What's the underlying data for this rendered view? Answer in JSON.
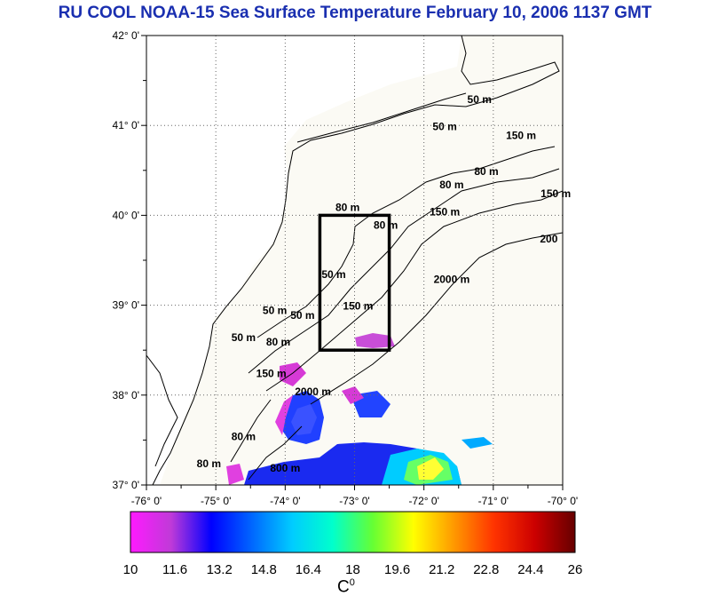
{
  "title": "RU COOL  NOAA-15 Sea Surface Temperature February 10, 2006 1137 GMT",
  "map": {
    "lat_labels": [
      "42° 0'",
      "41° 0'",
      "40° 0'",
      "39° 0'",
      "38° 0'",
      "37° 0'"
    ],
    "lat_values": [
      42,
      41,
      40,
      39,
      38,
      37
    ],
    "lon_labels": [
      "-76° 0'",
      "-75° 0'",
      "-74° 0'",
      "-73° 0'",
      "-72° 0'",
      "-71° 0'",
      "-70° 0'"
    ],
    "lon_values": [
      -76,
      -75,
      -74,
      -73,
      -72,
      -71,
      -70
    ],
    "lon_range": [
      -76,
      -70
    ],
    "lat_range": [
      37,
      42
    ],
    "grid": "dotted",
    "study_box": {
      "lon": [
        -73.5,
        -72.5
      ],
      "lat": [
        38.5,
        40.0
      ]
    },
    "contour_labels": [
      {
        "text": "50 m",
        "lon": -71.2,
        "lat": 41.25
      },
      {
        "text": "50 m",
        "lon": -71.7,
        "lat": 40.95
      },
      {
        "text": "150 m",
        "lon": -70.6,
        "lat": 40.85
      },
      {
        "text": "80 m",
        "lon": -71.6,
        "lat": 40.3
      },
      {
        "text": "80 m",
        "lon": -71.1,
        "lat": 40.45
      },
      {
        "text": "150 m",
        "lon": -70.1,
        "lat": 40.2
      },
      {
        "text": "80 m",
        "lon": -73.1,
        "lat": 40.05
      },
      {
        "text": "80 m",
        "lon": -72.55,
        "lat": 39.85
      },
      {
        "text": "150 m",
        "lon": -71.7,
        "lat": 40.0
      },
      {
        "text": "200",
        "lon": -70.2,
        "lat": 39.7
      },
      {
        "text": "50 m",
        "lon": -73.3,
        "lat": 39.3
      },
      {
        "text": "2000 m",
        "lon": -71.6,
        "lat": 39.25
      },
      {
        "text": "50 m",
        "lon": -74.15,
        "lat": 38.9
      },
      {
        "text": "50 m",
        "lon": -73.75,
        "lat": 38.85
      },
      {
        "text": "150 m",
        "lon": -72.95,
        "lat": 38.95
      },
      {
        "text": "50 m",
        "lon": -74.6,
        "lat": 38.6
      },
      {
        "text": "80 m",
        "lon": -74.1,
        "lat": 38.55
      },
      {
        "text": "150 m",
        "lon": -74.2,
        "lat": 38.2
      },
      {
        "text": "2000 m",
        "lon": -73.6,
        "lat": 38.0
      },
      {
        "text": "80 m",
        "lon": -74.6,
        "lat": 37.5
      },
      {
        "text": "800 m",
        "lon": -74.0,
        "lat": 37.15
      },
      {
        "text": "80 m",
        "lon": -75.1,
        "lat": 37.2
      }
    ]
  },
  "colorbar": {
    "min": 10,
    "max": 26,
    "tick_labels": [
      "10",
      "11.6",
      "13.2",
      "14.8",
      "16.4",
      "18",
      "19.6",
      "21.2",
      "22.8",
      "24.4",
      "26"
    ],
    "unit": "C",
    "unit_superscript": "0",
    "stops": [
      "#ff1aff",
      "#c03ad8",
      "#0000ff",
      "#0066ff",
      "#00ccff",
      "#00ffcc",
      "#66ff33",
      "#ffff00",
      "#ff9900",
      "#ff3300",
      "#cc0000",
      "#660000"
    ]
  },
  "colors": {
    "title": "#1a2fb0",
    "land": "#ffffff",
    "ocean": "#fbfaf4",
    "box": "#000000"
  }
}
